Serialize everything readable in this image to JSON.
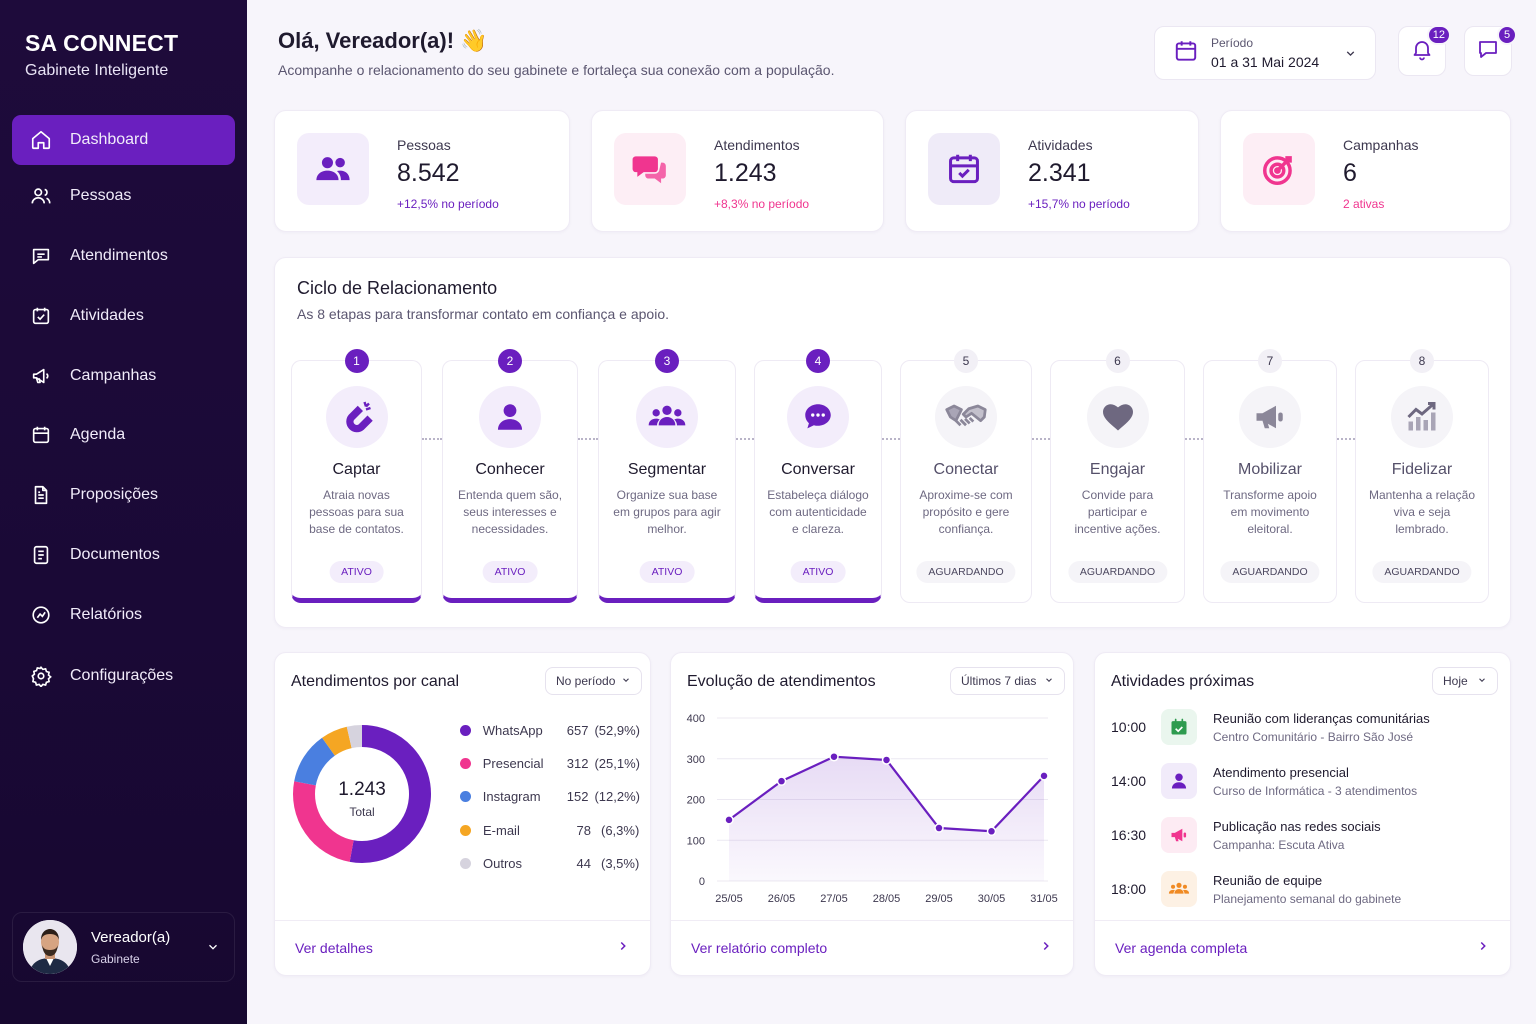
{
  "brand": {
    "title": "SA CONNECT",
    "subtitle": "Gabinete Inteligente"
  },
  "nav": [
    {
      "label": "Dashboard",
      "icon": "home-icon",
      "active": true
    },
    {
      "label": "Pessoas",
      "icon": "users-icon"
    },
    {
      "label": "Atendimentos",
      "icon": "chat-icon"
    },
    {
      "label": "Atividades",
      "icon": "calendar-check-icon"
    },
    {
      "label": "Campanhas",
      "icon": "megaphone-icon"
    },
    {
      "label": "Agenda",
      "icon": "calendar-icon"
    },
    {
      "label": "Proposições",
      "icon": "document-icon"
    },
    {
      "label": "Documentos",
      "icon": "file-icon"
    },
    {
      "label": "Relatórios",
      "icon": "report-icon"
    },
    {
      "label": "Configurações",
      "icon": "gear-icon"
    }
  ],
  "user": {
    "name": "Vereador(a)",
    "role": "Gabinete"
  },
  "header": {
    "greeting": "Olá, Vereador(a)! 👋",
    "subtitle": "Acompanhe o relacionamento do seu gabinete e fortaleça sua conexão com a população.",
    "period_label": "Período",
    "period_value": "01 a 31 Mai 2024",
    "notifications_count": "12",
    "messages_count": "5"
  },
  "stats": [
    {
      "label": "Pessoas",
      "value": "8.542",
      "sub": "+12,5% no período",
      "icon": "users-icon"
    },
    {
      "label": "Atendimentos",
      "value": "1.243",
      "sub": "+8,3% no período",
      "icon": "chat-icon"
    },
    {
      "label": "Atividades",
      "value": "2.341",
      "sub": "+15,7% no período",
      "icon": "calendar-check-icon"
    },
    {
      "label": "Campanhas",
      "value": "6",
      "sub": "2 ativas",
      "icon": "target-icon"
    }
  ],
  "cycle": {
    "title": "Ciclo de Relacionamento",
    "subtitle": "As 8 etapas para transformar contato em confiança e apoio.",
    "steps": [
      {
        "num": "1",
        "name": "Captar",
        "desc": "Atraia novas pessoas para sua base de contatos.",
        "status": "ATIVO"
      },
      {
        "num": "2",
        "name": "Conhecer",
        "desc": "Entenda quem são, seus interesses e necessidades.",
        "status": "ATIVO"
      },
      {
        "num": "3",
        "name": "Segmentar",
        "desc": "Organize sua base em grupos para agir melhor.",
        "status": "ATIVO"
      },
      {
        "num": "4",
        "name": "Conversar",
        "desc": "Estabeleça diálogo com autenticidade e clareza.",
        "status": "ATIVO"
      },
      {
        "num": "5",
        "name": "Conectar",
        "desc": "Aproxime-se com propósito e gere confiança.",
        "status": "AGUARDANDO"
      },
      {
        "num": "6",
        "name": "Engajar",
        "desc": "Convide para participar e incentive ações.",
        "status": "AGUARDANDO"
      },
      {
        "num": "7",
        "name": "Mobilizar",
        "desc": "Transforme apoio em movimento eleitoral.",
        "status": "AGUARDANDO"
      },
      {
        "num": "8",
        "name": "Fidelizar",
        "desc": "Mantenha a relação viva e seja lembrado.",
        "status": "AGUARDANDO"
      }
    ]
  },
  "channels": {
    "title": "Atendimentos por canal",
    "filter": "No período",
    "total_value": "1.243",
    "total_label": "Total",
    "footer_link": "Ver detalhes",
    "items": [
      {
        "name": "WhatsApp",
        "value": "657",
        "pct": "(52,9%)",
        "color": "#6a1fbf"
      },
      {
        "name": "Presencial",
        "value": "312",
        "pct": "(25,1%)",
        "color": "#f0358f"
      },
      {
        "name": "Instagram",
        "value": "152",
        "pct": "(12,2%)",
        "color": "#4a7fe0"
      },
      {
        "name": "E-mail",
        "value": "78",
        "pct": "(6,3%)",
        "color": "#f5a623"
      },
      {
        "name": "Outros",
        "value": "44",
        "pct": "(3,5%)",
        "color": "#d6d3de"
      }
    ]
  },
  "chart_data": {
    "type": "line",
    "title": "Evolução de atendimentos",
    "x": [
      "25/05",
      "26/05",
      "27/05",
      "28/05",
      "29/05",
      "30/05",
      "31/05"
    ],
    "values": [
      150,
      245,
      305,
      297,
      130,
      122,
      258
    ],
    "ylim": [
      0,
      400
    ],
    "yticks": [
      "0",
      "100",
      "200",
      "300",
      "400"
    ],
    "grid": true,
    "filter": "Últimos 7 dias",
    "footer_link": "Ver relatório completo"
  },
  "activities": {
    "title": "Atividades próximas",
    "filter": "Hoje",
    "footer_link": "Ver agenda completa",
    "items": [
      {
        "time": "10:00",
        "title": "Reunião com lideranças comunitárias",
        "sub": "Centro Comunitário - Bairro São José",
        "icon": "calendar-check-icon",
        "color": "#2e9b4f"
      },
      {
        "time": "14:00",
        "title": "Atendimento presencial",
        "sub": "Curso de Informática - 3 atendimentos",
        "icon": "user-icon",
        "color": "#6a1fbf"
      },
      {
        "time": "16:30",
        "title": "Publicação nas redes sociais",
        "sub": "Campanha: Escuta Ativa",
        "icon": "megaphone-icon",
        "color": "#f0358f"
      },
      {
        "time": "18:00",
        "title": "Reunião de equipe",
        "sub": "Planejamento semanal do gabinete",
        "icon": "team-icon",
        "color": "#f08a23"
      }
    ]
  }
}
